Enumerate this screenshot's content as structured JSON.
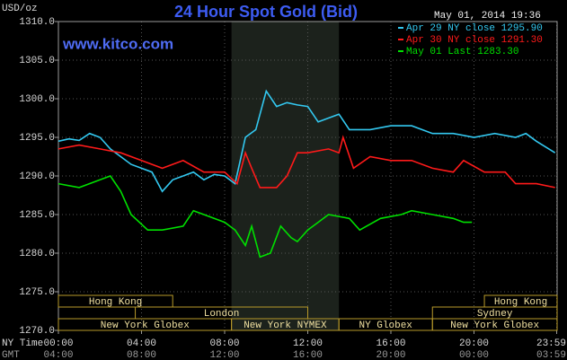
{
  "chart_data": {
    "type": "line",
    "title": "24 Hour Spot Gold (Bid)",
    "y_label": "USD/oz",
    "watermark": "www.kitco.com",
    "timestamp": "May 01, 2014 19:36",
    "x_label": "NY Time",
    "x2_label": "GMT",
    "xlim": [
      0,
      24
    ],
    "xticks": [
      {
        "value": 0,
        "label": "00:00"
      },
      {
        "value": 4,
        "label": "04:00"
      },
      {
        "value": 8,
        "label": "08:00"
      },
      {
        "value": 12,
        "label": "12:00"
      },
      {
        "value": 16,
        "label": "16:00"
      },
      {
        "value": 20,
        "label": "20:00"
      },
      {
        "value": 23.98,
        "label": "23:59"
      }
    ],
    "x2ticks": [
      {
        "value": 0,
        "label": "04:00"
      },
      {
        "value": 4,
        "label": "08:00"
      },
      {
        "value": 8,
        "label": "12:00"
      },
      {
        "value": 12,
        "label": "16:00"
      },
      {
        "value": 16,
        "label": "20:00"
      },
      {
        "value": 20,
        "label": "00:00"
      },
      {
        "value": 23.98,
        "label": "03:59"
      }
    ],
    "ylim": [
      1270,
      1310
    ],
    "yticks": [
      {
        "value": 1270,
        "label": "1270.0"
      },
      {
        "value": 1275,
        "label": "1275.0"
      },
      {
        "value": 1280,
        "label": "1280.0"
      },
      {
        "value": 1285,
        "label": "1285.0"
      },
      {
        "value": 1290,
        "label": "1290.0"
      },
      {
        "value": 1295,
        "label": "1295.0"
      },
      {
        "value": 1300,
        "label": "1300.0"
      },
      {
        "value": 1305,
        "label": "1305.0"
      },
      {
        "value": 1310,
        "label": "1310.0"
      }
    ],
    "grid": true,
    "sessions": [
      [
        {
          "label": "Hong Kong",
          "start": 0,
          "end": 5.5
        },
        {
          "label": "Hong Kong",
          "start": 20.5,
          "end": 24
        }
      ],
      [
        {
          "label": "London",
          "start": 3.7,
          "end": 12
        },
        {
          "label": "Sydney",
          "start": 18,
          "end": 24
        }
      ],
      [
        {
          "label": "New York Globex",
          "start": 0,
          "end": 8.33
        },
        {
          "label": "New York NYMEX",
          "start": 8.33,
          "end": 13.5
        },
        {
          "label": "NY Globex",
          "start": 13.5,
          "end": 18
        },
        {
          "label": "New York Globex",
          "start": 18,
          "end": 24
        }
      ]
    ],
    "series": [
      {
        "name": "Apr 29 NY close 1295.90",
        "color": "#33c8f0",
        "x": [
          0,
          0.5,
          1,
          1.5,
          2,
          2.5,
          3,
          3.5,
          4,
          4.5,
          5,
          5.5,
          6,
          6.5,
          7,
          7.5,
          8,
          8.5,
          9,
          9.5,
          10,
          10.5,
          11,
          11.5,
          12,
          12.5,
          13,
          13.5,
          14,
          15,
          16,
          17,
          18,
          19,
          20,
          21,
          22,
          22.5,
          23,
          23.9
        ],
        "values": [
          1294.5,
          1294.8,
          1294.6,
          1295.5,
          1295,
          1293.5,
          1292.5,
          1291.5,
          1291,
          1290.5,
          1288,
          1289.5,
          1290,
          1290.5,
          1289.5,
          1290.2,
          1290,
          1289,
          1295,
          1296,
          1301,
          1299,
          1299.5,
          1299.2,
          1299,
          1297,
          1297.5,
          1298,
          1296,
          1296,
          1296.5,
          1296.5,
          1295.5,
          1295.5,
          1295,
          1295.5,
          1295,
          1295.5,
          1294.5,
          1293
        ]
      },
      {
        "name": "Apr 30 NY close 1291.30",
        "color": "#ff1a1a",
        "x": [
          0,
          1,
          2,
          3,
          4,
          5,
          6,
          7,
          8,
          8.6,
          9,
          9.3,
          9.7,
          10.5,
          11,
          11.5,
          12,
          13,
          13.5,
          13.7,
          14.2,
          15,
          16,
          17,
          18,
          19,
          19.5,
          20.5,
          21.5,
          22,
          23,
          23.9
        ],
        "values": [
          1293.5,
          1294,
          1293.5,
          1293,
          1292,
          1291,
          1292,
          1290.5,
          1290.5,
          1289,
          1293,
          1291,
          1288.5,
          1288.5,
          1290,
          1293,
          1293,
          1293.5,
          1293,
          1295,
          1291,
          1292.5,
          1292,
          1292,
          1291,
          1290.5,
          1292,
          1290.5,
          1290.5,
          1289,
          1289,
          1288.5
        ]
      },
      {
        "name": "May 01 Last 1283.30",
        "color": "#00e000",
        "x": [
          0,
          1,
          2,
          2.5,
          3,
          3.5,
          4.3,
          5,
          6,
          6.5,
          7,
          8,
          8.5,
          9,
          9.3,
          9.7,
          10.2,
          10.7,
          11.2,
          11.5,
          12,
          12.5,
          13,
          14,
          14.5,
          15.5,
          16.5,
          17,
          18,
          19,
          19.5,
          19.9
        ],
        "values": [
          1289,
          1288.5,
          1289.5,
          1290,
          1288,
          1285,
          1283,
          1283,
          1283.5,
          1285.5,
          1285,
          1284,
          1283,
          1281,
          1283.5,
          1279.5,
          1280,
          1283.5,
          1282,
          1281.5,
          1283,
          1284,
          1285,
          1284.5,
          1283,
          1284.5,
          1285,
          1285.5,
          1285,
          1284.5,
          1284,
          1284
        ]
      }
    ]
  }
}
